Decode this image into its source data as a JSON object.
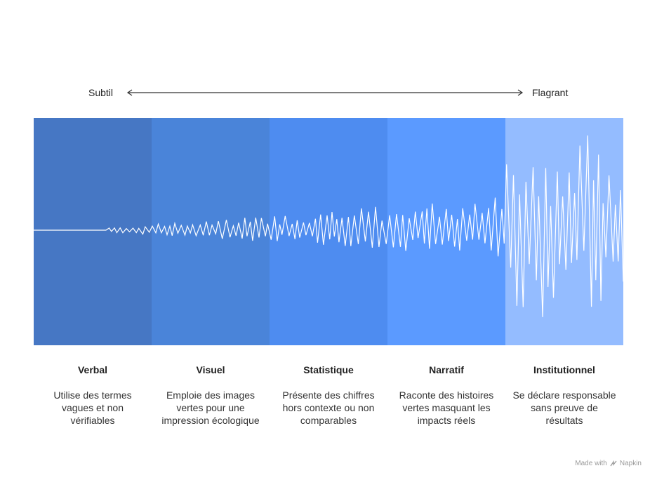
{
  "scale": {
    "left_label": "Subtil",
    "right_label": "Flagrant"
  },
  "colors": {
    "bands": [
      "#4677c4",
      "#4a84d9",
      "#4e8cf0",
      "#5b9aff",
      "#94bcff"
    ],
    "wave": "#ffffff",
    "arrow": "#333333"
  },
  "columns": [
    {
      "title": "Verbal",
      "description": "Utilise des termes vagues et non vérifiables"
    },
    {
      "title": "Visuel",
      "description": "Emploie des images vertes pour une impression écologique"
    },
    {
      "title": "Statistique",
      "description": "Présente des chiffres hors contexte ou non comparables"
    },
    {
      "title": "Narratif",
      "description": "Raconte des histoires vertes masquant les impacts réels"
    },
    {
      "title": "Institutionnel",
      "description": "Se déclare responsable sans preuve de résultats"
    }
  ],
  "footer": {
    "made_with": "Made with",
    "brand": "Napkin",
    "icon": "napkin-logo-icon"
  }
}
